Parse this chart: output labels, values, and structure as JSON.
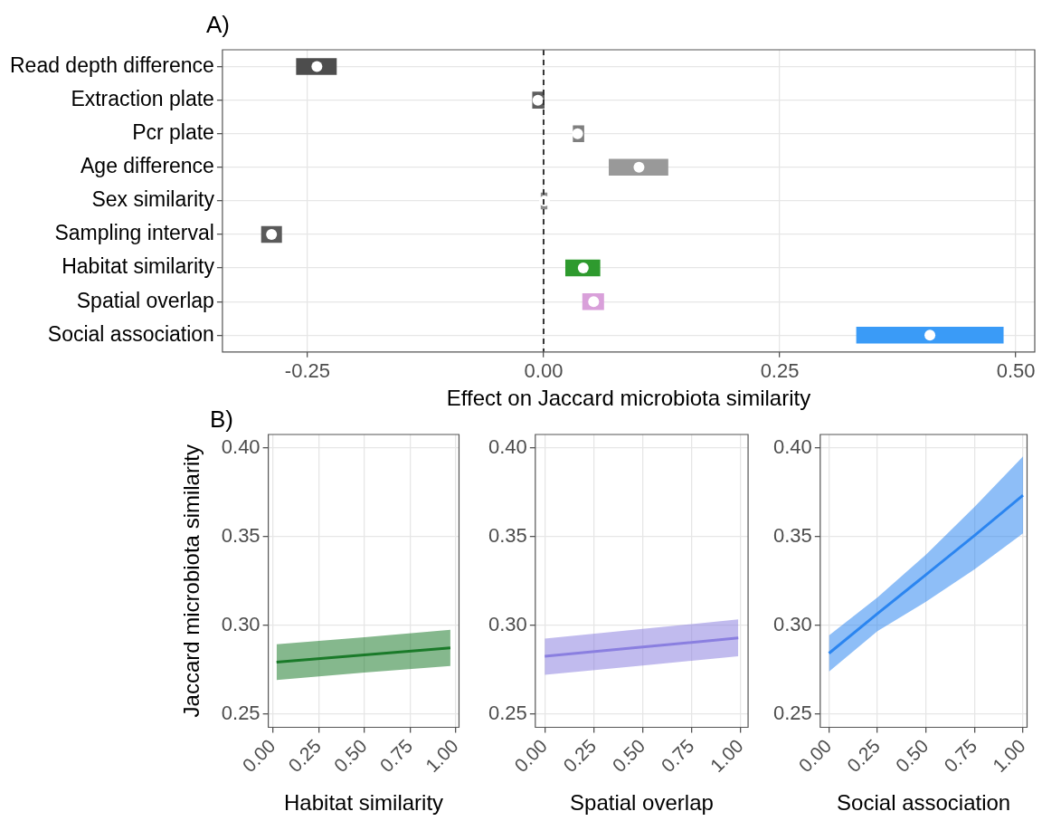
{
  "chart_data": [
    {
      "type": "bar",
      "orientation": "horizontal",
      "title": "A)",
      "xlabel": "Effect on Jaccard microbiota similarity",
      "categories": [
        "Read depth difference",
        "Extraction plate",
        "Pcr plate",
        "Age difference",
        "Sex similarity",
        "Sampling interval",
        "Habitat similarity",
        "Spatial overlap",
        "Social association"
      ],
      "series": [
        {
          "type": "bar",
          "base": [
            -0.262,
            -0.012,
            0.031,
            0.069,
            -0.003,
            -0.299,
            0.023,
            0.041,
            0.331
          ],
          "values": [
            0.043,
            0.013,
            0.012,
            0.063,
            0.007,
            0.022,
            0.037,
            0.023,
            0.156
          ],
          "colors": [
            "#4d4d4d",
            "#5e5e5e",
            "#7f7f7f",
            "#999999",
            "#8c8c8c",
            "#5a5a5a",
            "#2e9a2e",
            "#d9a0da",
            "#3a9bf7"
          ]
        },
        {
          "type": "scatter",
          "x": [
            "Read depth difference",
            "Extraction plate",
            "Pcr plate",
            "Age difference",
            "Sex similarity",
            "Sampling interval",
            "Habitat similarity",
            "Spatial overlap",
            "Social association"
          ],
          "values": [
            -0.24,
            -0.006,
            0.036,
            0.101,
            0.001,
            -0.288,
            0.042,
            0.053,
            0.409
          ],
          "color": "#ffffff"
        }
      ],
      "marker": "circle",
      "xlim": [
        -0.34,
        0.52
      ],
      "xticks": [
        {
          "value": -0.25,
          "label": "-0.25"
        },
        {
          "value": 0,
          "label": "0.00"
        },
        {
          "value": 0.25,
          "label": "0.25"
        },
        {
          "value": 0.5,
          "label": "0.50"
        }
      ],
      "ref_lines": [
        {
          "axis": "x",
          "value": 0,
          "line_style": "dashed",
          "color": "#333333"
        }
      ],
      "grid": true
    },
    {
      "type": "line",
      "title": "B)",
      "xlabel": "Habitat similarity",
      "ylabel": "Jaccard microbiota similarity",
      "x": [
        0.02,
        0.5,
        0.97
      ],
      "series": [
        {
          "color": "#1a7a2a",
          "values": [
            0.2792,
            0.2833,
            0.2872
          ],
          "lower": [
            0.2691,
            0.2733,
            0.2771
          ],
          "upper": [
            0.2893,
            0.2933,
            0.2975
          ]
        }
      ],
      "xlim": [
        -0.025,
        1.017
      ],
      "ylim": [
        0.2425,
        0.4075
      ],
      "xticks": [
        {
          "value": 0,
          "label": "0.00"
        },
        {
          "value": 0.25,
          "label": "0.25"
        },
        {
          "value": 0.5,
          "label": "0.50"
        },
        {
          "value": 0.75,
          "label": "0.75"
        },
        {
          "value": 1,
          "label": "1.00"
        }
      ],
      "yticks": [
        {
          "value": 0.25,
          "label": "0.25"
        },
        {
          "value": 0.3,
          "label": "0.30"
        },
        {
          "value": 0.35,
          "label": "0.35"
        },
        {
          "value": 0.4,
          "label": "0.40"
        }
      ],
      "grid": true,
      "marker": "none"
    },
    {
      "type": "line",
      "xlabel": "Spatial overlap",
      "x": [
        0,
        0.5,
        0.988
      ],
      "series": [
        {
          "color": "#8a7fe0",
          "values": [
            0.2825,
            0.2877,
            0.2928
          ],
          "lower": [
            0.2721,
            0.2773,
            0.2825
          ],
          "upper": [
            0.2925,
            0.2979,
            0.3033
          ]
        }
      ],
      "xlim": [
        -0.048,
        1.038
      ],
      "ylim": [
        0.2425,
        0.4075
      ],
      "xticks": [
        {
          "value": 0,
          "label": "0.00"
        },
        {
          "value": 0.25,
          "label": "0.25"
        },
        {
          "value": 0.5,
          "label": "0.50"
        },
        {
          "value": 0.75,
          "label": "0.75"
        },
        {
          "value": 1,
          "label": "1.00"
        }
      ],
      "yticks": [
        {
          "value": 0.25,
          "label": "0.25"
        },
        {
          "value": 0.3,
          "label": "0.30"
        },
        {
          "value": 0.35,
          "label": "0.35"
        },
        {
          "value": 0.4,
          "label": "0.40"
        }
      ],
      "grid": true,
      "marker": "none"
    },
    {
      "type": "line",
      "xlabel": "Social association",
      "x": [
        0,
        0.25,
        0.5,
        0.75,
        1
      ],
      "series": [
        {
          "color": "#2b86f0",
          "values": [
            0.2842,
            0.3066,
            0.3285,
            0.3506,
            0.3733
          ],
          "lower": [
            0.2739,
            0.2967,
            0.3132,
            0.3315,
            0.3518
          ],
          "upper": [
            0.2942,
            0.3157,
            0.3398,
            0.3667,
            0.3951
          ]
        }
      ],
      "xlim": [
        -0.045,
        1.021
      ],
      "ylim": [
        0.2425,
        0.4075
      ],
      "xticks": [
        {
          "value": 0,
          "label": "0.00"
        },
        {
          "value": 0.25,
          "label": "0.25"
        },
        {
          "value": 0.5,
          "label": "0.50"
        },
        {
          "value": 0.75,
          "label": "0.75"
        },
        {
          "value": 1,
          "label": "1.00"
        }
      ],
      "yticks": [
        {
          "value": 0.25,
          "label": "0.25"
        },
        {
          "value": 0.3,
          "label": "0.30"
        },
        {
          "value": 0.35,
          "label": "0.35"
        },
        {
          "value": 0.4,
          "label": "0.40"
        }
      ],
      "grid": true,
      "marker": "none"
    }
  ]
}
